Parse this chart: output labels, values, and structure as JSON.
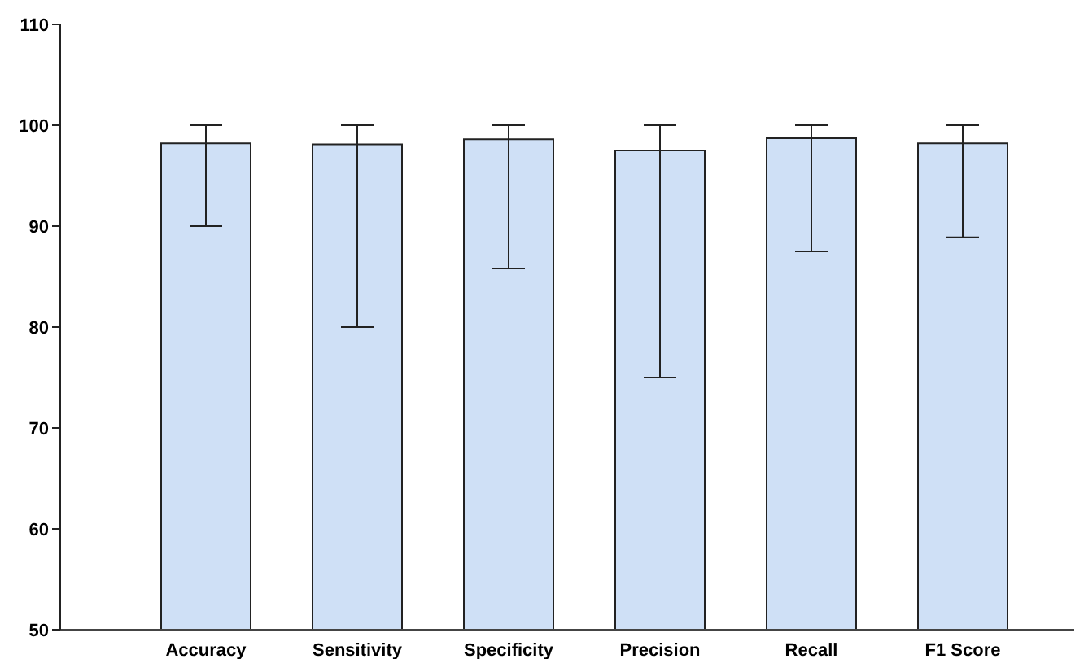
{
  "chart_data": {
    "type": "bar",
    "categories": [
      "Accuracy",
      "Sensitivity",
      "Specificity",
      "Precision",
      "Recall",
      "F1 Score"
    ],
    "values": [
      98.2,
      98.1,
      98.6,
      97.5,
      98.7,
      98.2
    ],
    "errors": [
      [
        90,
        100
      ],
      [
        80,
        100
      ],
      [
        85.8,
        100
      ],
      [
        75,
        100
      ],
      [
        87.5,
        100
      ],
      [
        88.9,
        100
      ]
    ],
    "color": "#cfe0f6",
    "ylim": [
      50,
      110
    ],
    "yticks": [
      50,
      60,
      70,
      80,
      90,
      100,
      110
    ],
    "grid": false,
    "legend": false
  }
}
